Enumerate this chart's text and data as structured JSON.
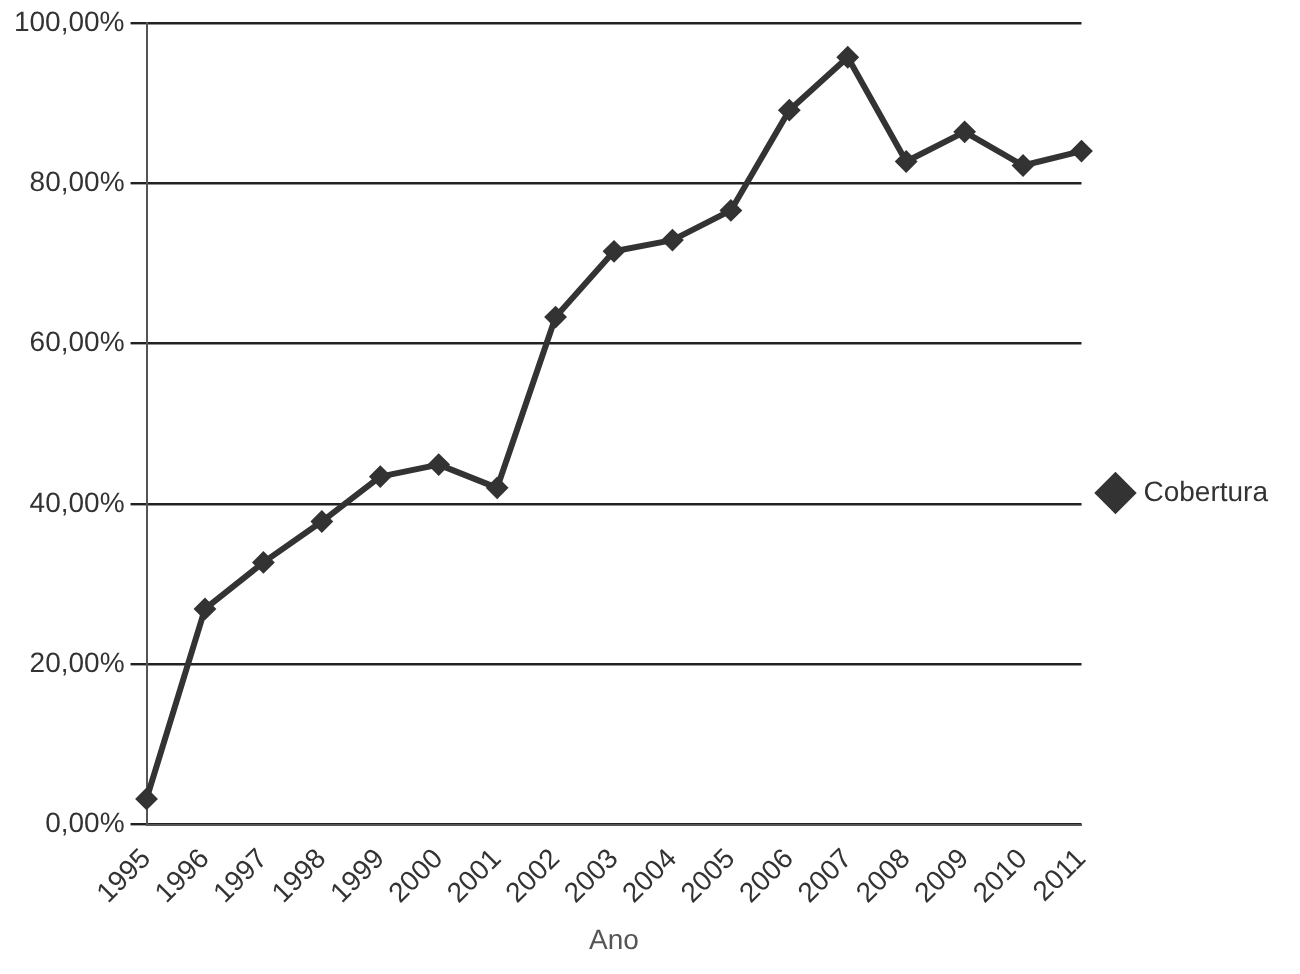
{
  "chart_data": {
    "type": "line",
    "xlabel": "Ano",
    "categories": [
      "1995",
      "1996",
      "1997",
      "1998",
      "1999",
      "2000",
      "2001",
      "2002",
      "2003",
      "2004",
      "2005",
      "2006",
      "2007",
      "2008",
      "2009",
      "2010",
      "2011"
    ],
    "series": [
      {
        "name": "Cobertura",
        "color": "#333333",
        "values": [
          3.2,
          26.9,
          32.7,
          37.8,
          43.4,
          44.9,
          42.0,
          63.3,
          71.5,
          72.9,
          76.6,
          89.1,
          95.7,
          82.7,
          86.4,
          82.2,
          84.0
        ]
      }
    ],
    "ylim": [
      0,
      100
    ],
    "yticks": [
      {
        "value": 0,
        "label": "0,00%"
      },
      {
        "value": 20,
        "label": "20,00%"
      },
      {
        "value": 40,
        "label": "40,00%"
      },
      {
        "value": 60,
        "label": "60,00%"
      },
      {
        "value": 80,
        "label": "80,00%"
      },
      {
        "value": 100,
        "label": "100,00%"
      }
    ],
    "grid": "y",
    "legend": "right",
    "marker": "diamond",
    "line_style": "solid"
  }
}
